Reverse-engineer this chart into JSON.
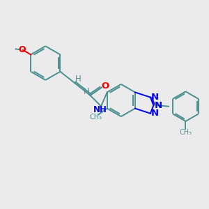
{
  "bg_color": "#ebebeb",
  "bond_color": "#4a9090",
  "bond_width": 1.4,
  "atom_colors": {
    "N": "#0000ee",
    "O": "#ee0000",
    "H": "#4a9090"
  },
  "font_size": 8.5,
  "fig_size": [
    3.0,
    3.0
  ],
  "dpi": 100,
  "xlim": [
    0,
    10
  ],
  "ylim": [
    0,
    10
  ]
}
